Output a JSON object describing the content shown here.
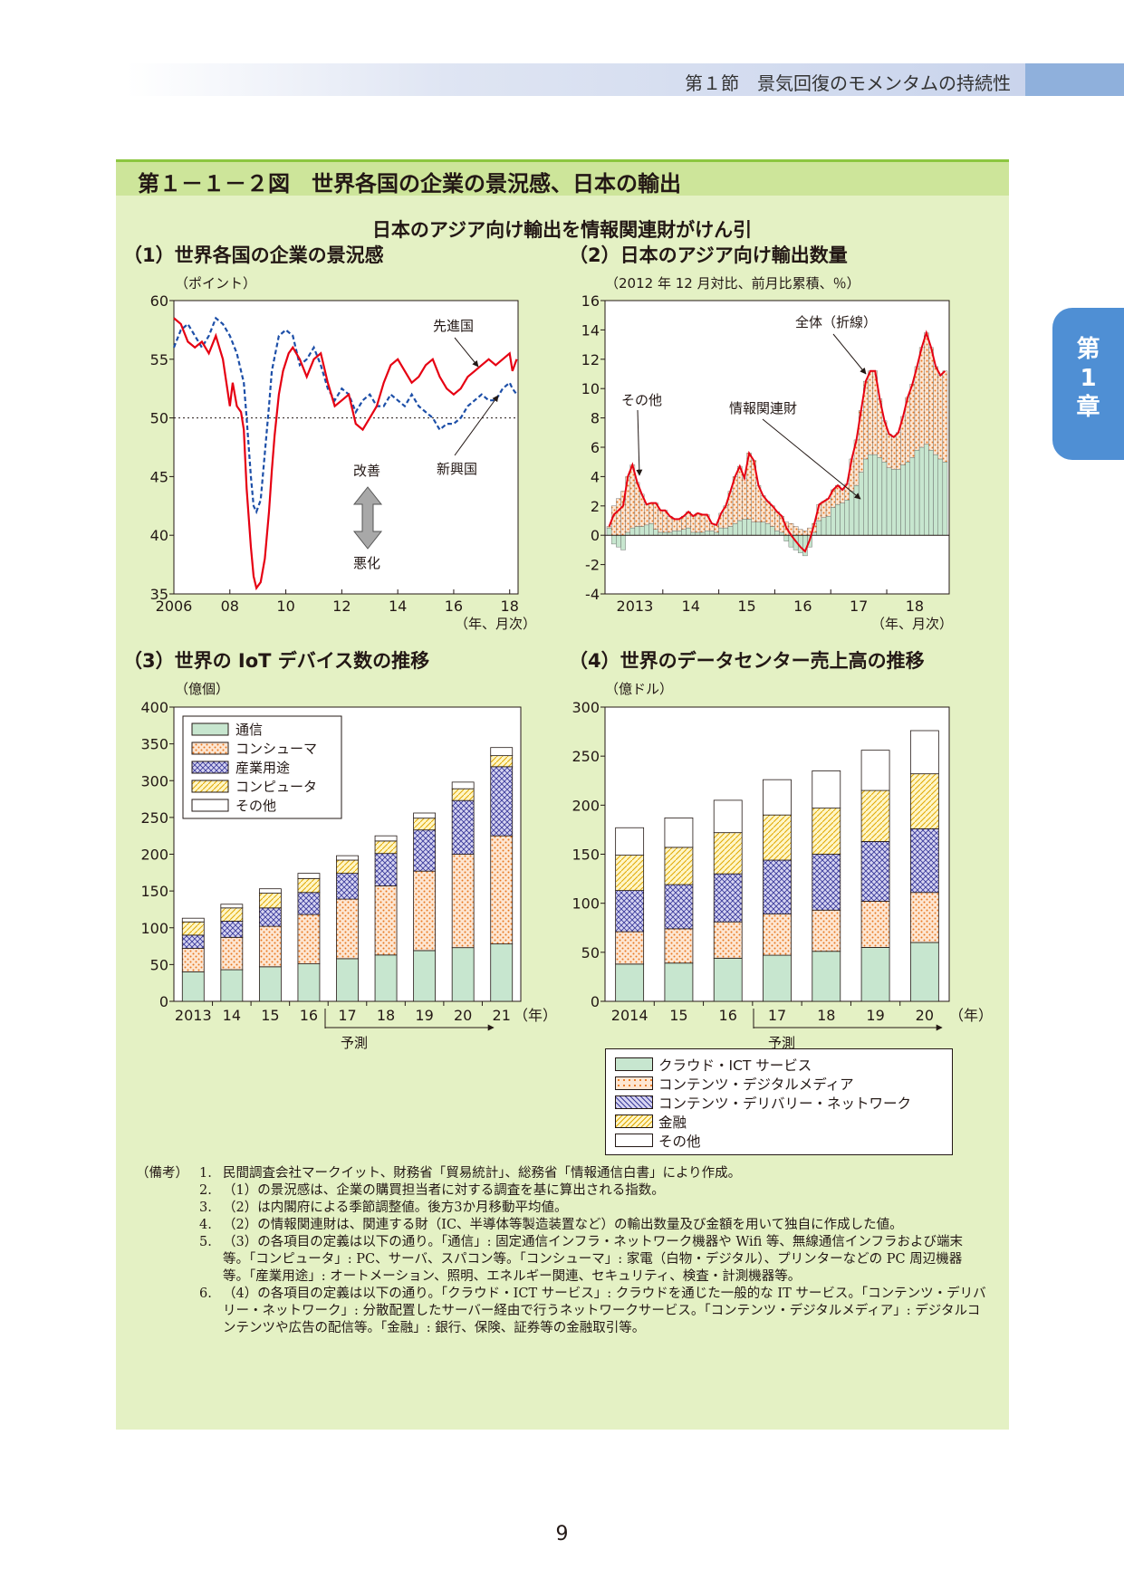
{
  "header": {
    "section": "第１節　景気回復のモメンタムの持続性"
  },
  "side_tab": {
    "line1": "第",
    "line2": "1",
    "line3": "章"
  },
  "figure": {
    "title": "第１－１－２図　世界各国の企業の景況感、日本の輸出",
    "subtitle": "日本のアジア向け輸出を情報関連財がけん引"
  },
  "colors": {
    "advanced": "#e60012",
    "emerging": "#1d4fa8",
    "comm": "#c7e6cf",
    "consumer": "#f39c5a",
    "industrial": "#3a3a9a",
    "computer": "#f0c419",
    "other": "#ffffff",
    "panel": "#e4f1c4",
    "title_bar": "#cde59a"
  },
  "chart1": {
    "title": "（1）世界各国の企業の景況感",
    "unit": "（ポイント）",
    "x_label": "（年、月次）",
    "label_advanced": "先進国",
    "label_emerging": "新興国",
    "label_better": "改善",
    "label_worse": "悪化",
    "y_ticks": [
      "60",
      "55",
      "50",
      "45",
      "40",
      "35"
    ],
    "x_ticks": [
      "2006",
      "08",
      "10",
      "12",
      "14",
      "16",
      "18"
    ],
    "icon": "up-down-arrow-icon"
  },
  "chart2": {
    "title": "（2）日本のアジア向け輸出数量",
    "unit": "（2012 年 12 月対比、前月比累積、％）",
    "x_label": "（年、月次）",
    "label_total": "全体（折線）",
    "label_other": "その他",
    "label_it": "情報関連財",
    "y_ticks": [
      "16",
      "14",
      "12",
      "10",
      "8",
      "6",
      "4",
      "2",
      "0",
      "-2",
      "-4"
    ],
    "x_ticks": [
      "2013",
      "14",
      "15",
      "16",
      "17",
      "18"
    ]
  },
  "chart3": {
    "title": "（3）世界の IoT デバイス数の推移",
    "unit": "（億個）",
    "x_unit": "（年）",
    "forecast": "予測",
    "y_ticks": [
      "400",
      "350",
      "300",
      "250",
      "200",
      "150",
      "100",
      "50",
      "0"
    ],
    "legend": [
      "通信",
      "コンシューマ",
      "産業用途",
      "コンピュータ",
      "その他"
    ]
  },
  "chart4": {
    "title": "（4）世界のデータセンター売上高の推移",
    "unit": "（億ドル）",
    "x_unit": "（年）",
    "forecast": "予測",
    "y_ticks": [
      "300",
      "250",
      "200",
      "150",
      "100",
      "50",
      "0"
    ],
    "legend": [
      "クラウド・ICT サービス",
      "コンテンツ・デジタルメディア",
      "コンテンツ・デリバリー・ネットワーク",
      "金融",
      "その他"
    ]
  },
  "chart_data": [
    {
      "type": "line",
      "title": "（1）世界各国の企業の景況感",
      "ylabel": "（ポイント）",
      "xlabel": "（年、月次）",
      "ylim": [
        35,
        60
      ],
      "xlim": [
        2006,
        2018.3
      ],
      "reference_line": 50,
      "series": [
        {
          "name": "先進国",
          "style": "solid",
          "points": [
            [
              2006.0,
              58.5
            ],
            [
              2006.25,
              58
            ],
            [
              2006.5,
              56.5
            ],
            [
              2006.75,
              56
            ],
            [
              2007.0,
              56.5
            ],
            [
              2007.25,
              55.5
            ],
            [
              2007.5,
              57
            ],
            [
              2007.75,
              55
            ],
            [
              2008.0,
              51
            ],
            [
              2008.1,
              53
            ],
            [
              2008.25,
              51
            ],
            [
              2008.4,
              50.5
            ],
            [
              2008.5,
              49
            ],
            [
              2008.6,
              44
            ],
            [
              2008.75,
              39
            ],
            [
              2008.85,
              36.5
            ],
            [
              2008.95,
              35.5
            ],
            [
              2009.1,
              36
            ],
            [
              2009.25,
              38
            ],
            [
              2009.4,
              42
            ],
            [
              2009.5,
              45.5
            ],
            [
              2009.6,
              48.5
            ],
            [
              2009.75,
              52
            ],
            [
              2009.9,
              54
            ],
            [
              2010.1,
              55.5
            ],
            [
              2010.25,
              56
            ],
            [
              2010.5,
              55
            ],
            [
              2010.75,
              53.5
            ],
            [
              2011.0,
              55
            ],
            [
              2011.25,
              55.5
            ],
            [
              2011.5,
              53
            ],
            [
              2011.75,
              51
            ],
            [
              2012.0,
              51.5
            ],
            [
              2012.25,
              52
            ],
            [
              2012.5,
              49.5
            ],
            [
              2012.75,
              49
            ],
            [
              2013.0,
              50
            ],
            [
              2013.25,
              51
            ],
            [
              2013.5,
              53
            ],
            [
              2013.75,
              54.5
            ],
            [
              2014.0,
              55
            ],
            [
              2014.25,
              54
            ],
            [
              2014.5,
              53
            ],
            [
              2014.75,
              53.5
            ],
            [
              2015.0,
              54.5
            ],
            [
              2015.25,
              55
            ],
            [
              2015.5,
              53.5
            ],
            [
              2015.75,
              52.5
            ],
            [
              2016.0,
              52
            ],
            [
              2016.25,
              52.5
            ],
            [
              2016.5,
              53.5
            ],
            [
              2016.75,
              54
            ],
            [
              2017.0,
              54.5
            ],
            [
              2017.25,
              55
            ],
            [
              2017.5,
              54.5
            ],
            [
              2017.75,
              55
            ],
            [
              2018.0,
              55.5
            ],
            [
              2018.1,
              54
            ],
            [
              2018.25,
              55
            ]
          ]
        },
        {
          "name": "新興国",
          "style": "dashed",
          "points": [
            [
              2006.0,
              56
            ],
            [
              2006.25,
              57.5
            ],
            [
              2006.5,
              58
            ],
            [
              2006.75,
              57
            ],
            [
              2007.0,
              56
            ],
            [
              2007.25,
              57
            ],
            [
              2007.5,
              58.5
            ],
            [
              2007.75,
              58
            ],
            [
              2008.0,
              57
            ],
            [
              2008.25,
              55.5
            ],
            [
              2008.5,
              53
            ],
            [
              2008.6,
              50
            ],
            [
              2008.75,
              45
            ],
            [
              2008.85,
              42.5
            ],
            [
              2008.95,
              42
            ],
            [
              2009.1,
              43
            ],
            [
              2009.25,
              47
            ],
            [
              2009.4,
              51
            ],
            [
              2009.5,
              54
            ],
            [
              2009.75,
              57
            ],
            [
              2010.0,
              57.5
            ],
            [
              2010.25,
              57
            ],
            [
              2010.5,
              54.5
            ],
            [
              2010.75,
              55
            ],
            [
              2011.0,
              56
            ],
            [
              2011.25,
              54.5
            ],
            [
              2011.5,
              52.5
            ],
            [
              2011.75,
              51.5
            ],
            [
              2012.0,
              52.5
            ],
            [
              2012.25,
              52
            ],
            [
              2012.5,
              50.5
            ],
            [
              2012.75,
              51.5
            ],
            [
              2013.0,
              52
            ],
            [
              2013.25,
              51
            ],
            [
              2013.5,
              51
            ],
            [
              2013.75,
              52
            ],
            [
              2014.0,
              51.5
            ],
            [
              2014.25,
              51
            ],
            [
              2014.5,
              52
            ],
            [
              2014.75,
              51
            ],
            [
              2015.0,
              50.5
            ],
            [
              2015.25,
              50
            ],
            [
              2015.5,
              49
            ],
            [
              2015.75,
              49.5
            ],
            [
              2016.0,
              49.5
            ],
            [
              2016.25,
              50
            ],
            [
              2016.5,
              51
            ],
            [
              2016.75,
              51.5
            ],
            [
              2017.0,
              52
            ],
            [
              2017.25,
              51.5
            ],
            [
              2017.5,
              51.5
            ],
            [
              2017.75,
              52.5
            ],
            [
              2018.0,
              53
            ],
            [
              2018.1,
              52.5
            ],
            [
              2018.25,
              52
            ]
          ]
        }
      ]
    },
    {
      "type": "bar",
      "title": "（2）日本のアジア向け輸出数量",
      "ylabel": "（2012 年 12 月対比、前月比累積、％）",
      "xlabel": "（年、月次）",
      "ylim": [
        -4,
        16
      ],
      "stacked": true,
      "x_months_start": "2013-01",
      "series": [
        {
          "name": "情報関連財",
          "values": [
            0.5,
            -0.6,
            -0.8,
            -1,
            0.2,
            0.5,
            0.6,
            0.6,
            0.7,
            0.8,
            0.4,
            0.2,
            0.2,
            0.2,
            0.3,
            0.3,
            0.4,
            0.5,
            0.2,
            0.2,
            0.2,
            0.3,
            0.3,
            0.2,
            0.5,
            0.5,
            0.6,
            0.8,
            1,
            1.1,
            1.1,
            0.9,
            0.9,
            0.9,
            0.8,
            0.6,
            0.3,
            0.2,
            -0.4,
            -0.8,
            -1,
            -1.2,
            -1.4,
            -0.8,
            0.2,
            1,
            1.2,
            1.3,
            1.9,
            2.1,
            2.2,
            2.4,
            3,
            3.4,
            4.3,
            5.2,
            5.5,
            5.5,
            5.3,
            5,
            4.6,
            4.5,
            4.5,
            4.8,
            5,
            5.3,
            5.8,
            6,
            6.2,
            5.8,
            5.5,
            5.2,
            5
          ]
        },
        {
          "name": "その他",
          "values": [
            0.1,
            2,
            2.5,
            3,
            3.8,
            4.3,
            3,
            2.2,
            1.4,
            1.4,
            1.8,
            1.5,
            1.5,
            1.1,
            0.8,
            0.8,
            0.9,
            1.1,
            1.1,
            1.3,
            1.2,
            1.1,
            0.5,
            0.5,
            1,
            1.5,
            2.4,
            3.2,
            3.7,
            2.8,
            4.5,
            4.2,
            2.5,
            1.8,
            1.5,
            1.4,
            1.3,
            1.1,
            0.9,
            0.8,
            0.6,
            0.4,
            0.3,
            0.5,
            0.6,
            1.1,
            1.1,
            1.2,
            1.2,
            1.3,
            0.9,
            1.1,
            2.2,
            3.1,
            4.2,
            5.3,
            5.7,
            5.7,
            4,
            2.8,
            2.3,
            2.2,
            2.5,
            3.3,
            4.4,
            5,
            5.7,
            6.8,
            7.6,
            7,
            6,
            5.7,
            6.2
          ]
        }
      ],
      "total_line": {
        "name": "全体（折線）",
        "values": [
          0.6,
          1.4,
          1.7,
          2,
          4,
          4.8,
          3.6,
          2.8,
          2.1,
          2.2,
          2.2,
          1.7,
          1.7,
          1.3,
          1.1,
          1.1,
          1.3,
          1.6,
          1.3,
          1.5,
          1.4,
          1.4,
          0.8,
          0.7,
          1.5,
          2,
          3,
          4,
          4.7,
          3.9,
          5.6,
          5.1,
          3.4,
          2.7,
          2.3,
          2,
          1.6,
          1.3,
          0.5,
          0,
          -0.4,
          -0.8,
          -1.1,
          -0.3,
          0.8,
          2.1,
          2.3,
          2.5,
          3.1,
          3.4,
          3.1,
          3.5,
          5.2,
          6.5,
          8.5,
          10.5,
          11.2,
          11.2,
          9.3,
          7.8,
          6.9,
          6.7,
          7,
          8.1,
          9.4,
          10.3,
          11.5,
          12.8,
          13.8,
          12.8,
          11.5,
          10.9,
          11.2
        ]
      }
    },
    {
      "type": "bar",
      "title": "（3）世界の IoT デバイス数の推移",
      "ylabel": "（億個）",
      "xlabel": "（年）",
      "ylim": [
        0,
        400
      ],
      "stacked": true,
      "categories": [
        "2013",
        "14",
        "15",
        "16",
        "17",
        "18",
        "19",
        "20",
        "21"
      ],
      "forecast_from": "17",
      "series": [
        {
          "name": "通信",
          "values": [
            40,
            43,
            47,
            51,
            58,
            63,
            69,
            73,
            78
          ]
        },
        {
          "name": "コンシューマ",
          "values": [
            32,
            44,
            55,
            67,
            81,
            94,
            108,
            127,
            147
          ]
        },
        {
          "name": "産業用途",
          "values": [
            18,
            22,
            25,
            30,
            35,
            44,
            56,
            73,
            94
          ]
        },
        {
          "name": "コンピュータ",
          "values": [
            18,
            18,
            20,
            19,
            18,
            17,
            16,
            16,
            15
          ]
        },
        {
          "name": "その他",
          "values": [
            5,
            5,
            6,
            7,
            6,
            7,
            7,
            9,
            11
          ]
        }
      ]
    },
    {
      "type": "bar",
      "title": "（4）世界のデータセンター売上高の推移",
      "ylabel": "（億ドル）",
      "xlabel": "（年）",
      "ylim": [
        0,
        300
      ],
      "stacked": true,
      "categories": [
        "2014",
        "15",
        "16",
        "17",
        "18",
        "19",
        "20"
      ],
      "forecast_from": "17",
      "series": [
        {
          "name": "クラウド・ICT サービス",
          "values": [
            38,
            39,
            44,
            47,
            51,
            55,
            60
          ]
        },
        {
          "name": "コンテンツ・デジタルメディア",
          "values": [
            33,
            35,
            37,
            42,
            42,
            47,
            51
          ]
        },
        {
          "name": "コンテンツ・デリバリー・ネットワーク",
          "values": [
            42,
            45,
            49,
            55,
            57,
            61,
            65
          ]
        },
        {
          "name": "金融",
          "values": [
            36,
            38,
            42,
            46,
            47,
            52,
            56
          ]
        },
        {
          "name": "その他",
          "values": [
            28,
            30,
            33,
            36,
            38,
            41,
            44
          ]
        }
      ]
    }
  ],
  "notes": {
    "head": "（備考）",
    "items": [
      {
        "num": "1.",
        "text": "民間調査会社マークイット、財務省「貿易統計」、総務省「情報通信白書」により作成。"
      },
      {
        "num": "2.",
        "text": "（1）の景況感は、企業の購買担当者に対する調査を基に算出される指数。"
      },
      {
        "num": "3.",
        "text": "（2）は内閣府による季節調整値。後方3か月移動平均値。"
      },
      {
        "num": "4.",
        "text": "（2）の情報関連財は、関連する財（IC、半導体等製造装置など）の輸出数量及び金額を用いて独自に作成した値。"
      },
      {
        "num": "5.",
        "text": "（3）の各項目の定義は以下の通り。「通信」: 固定通信インフラ・ネットワーク機器や Wifi 等、無線通信インフラおよび端末等。「コンピュータ」: PC、サーバ、スパコン等。「コンシューマ」: 家電（白物・デジタル）、プリンターなどの PC 周辺機器等。「産業用途」: オートメーション、照明、エネルギー関連、セキュリティ、検査・計測機器等。"
      },
      {
        "num": "6.",
        "text": "（4）の各項目の定義は以下の通り。「クラウド・ICT サービス」: クラウドを通じた一般的な IT サービス。「コンテンツ・デリバリー・ネットワーク」: 分散配置したサーバー経由で行うネットワークサービス。「コンテンツ・デジタルメディア」: デジタルコンテンツや広告の配信等。「金融」: 銀行、保険、証券等の金融取引等。"
      }
    ]
  },
  "page": {
    "number": "9"
  }
}
